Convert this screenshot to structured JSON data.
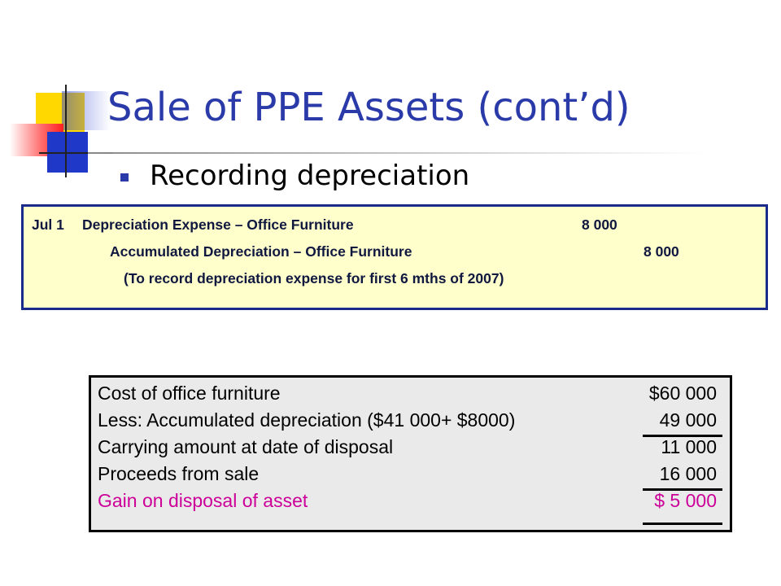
{
  "title": "Sale of PPE Assets (cont’d)",
  "bullet": "Recording depreciation",
  "journal": {
    "date": "Jul 1",
    "debit_account": "Depreciation Expense – Office Furniture",
    "debit_amount": "8 000",
    "credit_account": "Accumulated Depreciation – Office Furniture",
    "credit_amount": "8 000",
    "narration": "(To record depreciation expense for first 6 mths of 2007)"
  },
  "calculation": {
    "rows": [
      {
        "label": "Cost of office furniture",
        "amount": "$60 000"
      },
      {
        "label": "Less: Accumulated depreciation ($41 000+ $8000)",
        "amount": "49 000"
      },
      {
        "label": "Carrying amount at date of disposal",
        "amount": "11 000"
      },
      {
        "label": "Proceeds from sale",
        "amount": "16 000"
      },
      {
        "label": "Gain on disposal of asset",
        "amount": "$  5 000"
      }
    ],
    "gain_color": "#cc0099"
  },
  "colors": {
    "title": "#2a3aa8",
    "journal_bg": "#ffffcc",
    "journal_border": "#1a2b8c",
    "calc_bg": "#eaeaea"
  }
}
